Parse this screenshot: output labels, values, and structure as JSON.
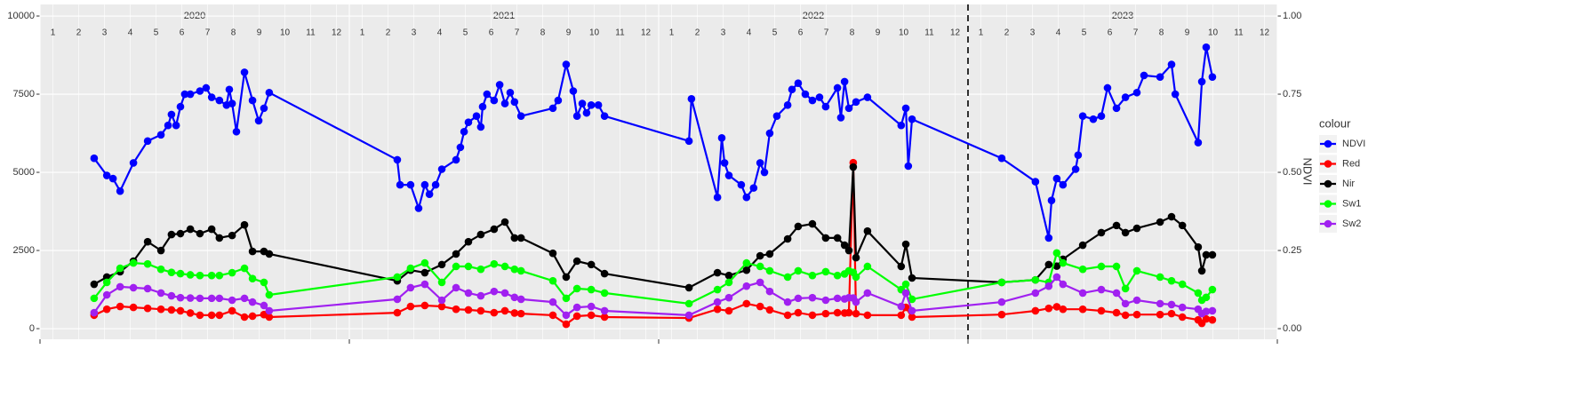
{
  "chart_data": {
    "type": "line",
    "legend_title": "colour",
    "legend": "right",
    "y2_label": "NDVI",
    "grid": true,
    "years": [
      2020,
      2021,
      2022,
      2023
    ],
    "months": [
      1,
      2,
      3,
      4,
      5,
      6,
      7,
      8,
      9,
      10,
      11,
      12
    ],
    "vline": 2023,
    "xlim": [
      2020,
      2024
    ],
    "xticks": [
      2020,
      2021,
      2022,
      2023,
      2024
    ],
    "ylim": [
      -340,
      10370
    ],
    "yticks": [
      0,
      2500,
      5000,
      7500,
      10000
    ],
    "y2lim": [
      -0.034,
      1.037
    ],
    "y2ticks": [
      {
        "value": 0,
        "label": "0.00"
      },
      {
        "value": 0.25,
        "label": "0.25"
      },
      {
        "value": 0.5,
        "label": "0.50"
      },
      {
        "value": 0.75,
        "label": "0.75"
      },
      {
        "value": 1,
        "label": "1.00"
      }
    ],
    "x": [
      2020.175,
      2020.216,
      2020.259,
      2020.302,
      2020.348,
      2020.391,
      2020.425,
      2020.454,
      2020.486,
      2020.517,
      2020.555,
      2020.58,
      2020.621,
      2020.661,
      2020.687,
      2020.724,
      2020.741,
      2021.155,
      2021.198,
      2021.244,
      2021.299,
      2021.345,
      2021.385,
      2021.425,
      2021.468,
      2021.503,
      2021.534,
      2021.555,
      2021.658,
      2021.701,
      2021.736,
      2021.782,
      2021.825,
      2022.098,
      2022.19,
      2022.227,
      2022.284,
      2022.328,
      2022.359,
      2022.417,
      2022.451,
      2022.497,
      2022.54,
      2022.578,
      2022.601,
      2022.615,
      2022.629,
      2022.638,
      2022.675,
      2022.784,
      2022.799,
      2022.819,
      2023.109,
      2023.218,
      2023.261,
      2023.287,
      2023.307,
      2023.371,
      2023.431,
      2023.48,
      2023.509,
      2023.546,
      2023.621,
      2023.658,
      2023.693,
      2023.744,
      2023.756,
      2023.77,
      2023.79
    ],
    "series": [
      {
        "name": "NDVI",
        "color": "#0000ff",
        "axis": "y2",
        "x": [
          2020.175,
          2020.216,
          2020.236,
          2020.259,
          2020.302,
          2020.348,
          2020.391,
          2020.414,
          2020.425,
          2020.44,
          2020.454,
          2020.468,
          2020.486,
          2020.517,
          2020.537,
          2020.555,
          2020.58,
          2020.603,
          2020.612,
          2020.621,
          2020.635,
          2020.661,
          2020.687,
          2020.707,
          2020.724,
          2020.741,
          2021.155,
          2021.164,
          2021.198,
          2021.224,
          2021.244,
          2021.259,
          2021.279,
          2021.299,
          2021.345,
          2021.359,
          2021.371,
          2021.385,
          2021.411,
          2021.425,
          2021.431,
          2021.445,
          2021.468,
          2021.486,
          2021.503,
          2021.52,
          2021.534,
          2021.555,
          2021.658,
          2021.675,
          2021.701,
          2021.724,
          2021.736,
          2021.753,
          2021.767,
          2021.782,
          2021.805,
          2021.825,
          2022.098,
          2022.106,
          2022.19,
          2022.204,
          2022.213,
          2022.227,
          2022.267,
          2022.284,
          2022.307,
          2022.328,
          2022.342,
          2022.359,
          2022.382,
          2022.417,
          2022.431,
          2022.451,
          2022.474,
          2022.497,
          2022.52,
          2022.54,
          2022.578,
          2022.589,
          2022.601,
          2022.615,
          2022.638,
          2022.675,
          2022.784,
          2022.799,
          2022.807,
          2022.819,
          2023.109,
          2023.218,
          2023.261,
          2023.27,
          2023.287,
          2023.307,
          2023.348,
          2023.356,
          2023.371,
          2023.405,
          2023.431,
          2023.451,
          2023.48,
          2023.509,
          2023.546,
          2023.569,
          2023.621,
          2023.658,
          2023.67,
          2023.744,
          2023.756,
          2023.77,
          2023.79
        ],
        "values": [
          0.545,
          0.49,
          0.48,
          0.44,
          0.53,
          0.6,
          0.62,
          0.65,
          0.685,
          0.65,
          0.71,
          0.75,
          0.75,
          0.76,
          0.77,
          0.74,
          0.73,
          0.715,
          0.765,
          0.72,
          0.63,
          0.82,
          0.73,
          0.665,
          0.705,
          0.755,
          0.54,
          0.46,
          0.46,
          0.385,
          0.46,
          0.43,
          0.46,
          0.51,
          0.54,
          0.58,
          0.63,
          0.66,
          0.68,
          0.645,
          0.71,
          0.75,
          0.73,
          0.78,
          0.72,
          0.755,
          0.725,
          0.68,
          0.705,
          0.73,
          0.845,
          0.76,
          0.68,
          0.72,
          0.69,
          0.715,
          0.715,
          0.68,
          0.6,
          0.735,
          0.42,
          0.61,
          0.53,
          0.49,
          0.46,
          0.42,
          0.45,
          0.53,
          0.5,
          0.625,
          0.68,
          0.715,
          0.765,
          0.785,
          0.75,
          0.73,
          0.74,
          0.71,
          0.77,
          0.675,
          0.79,
          0.705,
          0.725,
          0.74,
          0.65,
          0.705,
          0.52,
          0.67,
          0.545,
          0.47,
          0.29,
          0.41,
          0.48,
          0.46,
          0.51,
          0.555,
          0.68,
          0.67,
          0.68,
          0.77,
          0.705,
          0.74,
          0.755,
          0.81,
          0.805,
          0.845,
          0.75,
          0.595,
          0.79,
          0.9,
          0.805
        ]
      },
      {
        "name": "Red",
        "color": "#ff0000",
        "values": [
          430,
          620,
          710,
          680,
          650,
          620,
          600,
          570,
          500,
          430,
          430,
          430,
          570,
          370,
          400,
          450,
          370,
          510,
          710,
          740,
          710,
          620,
          600,
          570,
          510,
          570,
          500,
          480,
          430,
          140,
          400,
          430,
          370,
          340,
          620,
          570,
          800,
          710,
          600,
          430,
          510,
          430,
          480,
          510,
          500,
          510,
          5310,
          480,
          430,
          430,
          680,
          370,
          450,
          570,
          650,
          700,
          620,
          620,
          570,
          510,
          430,
          450,
          450,
          480,
          370,
          280,
          170,
          310,
          280
        ]
      },
      {
        "name": "Nir",
        "color": "#000000",
        "values": [
          1420,
          1650,
          1820,
          2160,
          2780,
          2500,
          3010,
          3040,
          3180,
          3040,
          3180,
          2900,
          2980,
          3320,
          2470,
          2470,
          2390,
          1530,
          1870,
          1790,
          2050,
          2390,
          2780,
          3010,
          3180,
          3410,
          2900,
          2900,
          2410,
          1650,
          2160,
          2050,
          1760,
          1310,
          1790,
          1700,
          1870,
          2330,
          2390,
          2870,
          3270,
          3350,
          2900,
          2900,
          2670,
          2500,
          5170,
          2270,
          3120,
          1990,
          2700,
          1620,
          1480,
          1560,
          2050,
          2000,
          2220,
          2670,
          3070,
          3300,
          3070,
          3210,
          3410,
          3580,
          3300,
          2610,
          1850,
          2360,
          2360
        ]
      },
      {
        "name": "Sw1",
        "color": "#00ff00",
        "values": [
          970,
          1480,
          1930,
          2100,
          2070,
          1900,
          1800,
          1760,
          1720,
          1700,
          1700,
          1700,
          1790,
          1930,
          1600,
          1480,
          1080,
          1650,
          1930,
          2100,
          1480,
          1990,
          1990,
          1900,
          2070,
          1990,
          1900,
          1850,
          1530,
          970,
          1280,
          1250,
          1140,
          800,
          1250,
          1480,
          2100,
          1990,
          1850,
          1650,
          1850,
          1700,
          1820,
          1700,
          1750,
          1850,
          1800,
          1650,
          1990,
          1250,
          1420,
          940,
          1480,
          1560,
          1480,
          2420,
          2100,
          1900,
          1990,
          1990,
          1280,
          1850,
          1650,
          1530,
          1420,
          1140,
          910,
          1000,
          1250
        ]
      },
      {
        "name": "Sw2",
        "color": "#a020f0",
        "values": [
          510,
          1080,
          1340,
          1310,
          1280,
          1140,
          1050,
          990,
          980,
          970,
          970,
          970,
          910,
          970,
          850,
          740,
          570,
          940,
          1310,
          1420,
          910,
          1310,
          1140,
          1050,
          1190,
          1140,
          1000,
          940,
          850,
          430,
          680,
          710,
          570,
          430,
          850,
          990,
          1360,
          1480,
          1190,
          850,
          970,
          990,
          910,
          970,
          950,
          990,
          980,
          850,
          1140,
          710,
          1140,
          570,
          850,
          1140,
          1360,
          1650,
          1420,
          1140,
          1250,
          1140,
          800,
          910,
          800,
          770,
          680,
          620,
          480,
          550,
          570
        ]
      }
    ]
  }
}
